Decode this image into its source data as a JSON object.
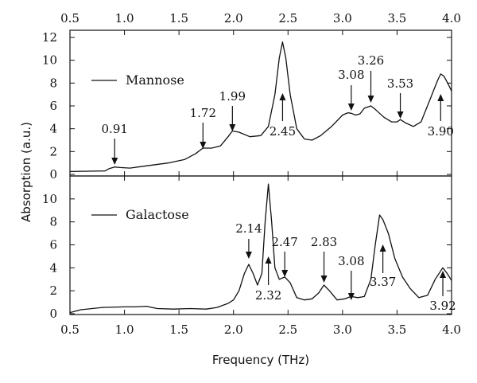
{
  "chart_data": {
    "type": "line",
    "xlabel": "Frequency (THz)",
    "ylabel": "Absorption (a.u.)",
    "xlim": [
      0.5,
      4.0
    ],
    "x_ticks": [
      "0.5",
      "1.0",
      "1.5",
      "2.0",
      "2.5",
      "3.0",
      "3.5",
      "4.0"
    ],
    "top_x_ticks": [
      "0.5",
      "1.0",
      "1.5",
      "2.0",
      "2.5",
      "3.0",
      "3.5",
      "4.0"
    ],
    "grid": false,
    "panels": [
      {
        "name": "Mannose",
        "ylim": [
          0,
          12
        ],
        "y_ticks": [
          "0",
          "2",
          "4",
          "6",
          "8",
          "10",
          "12"
        ],
        "legend_position": "middle-left",
        "series": [
          {
            "name": "Mannose",
            "x": [
              0.5,
              0.82,
              0.86,
              0.91,
              0.96,
              1.05,
              1.2,
              1.4,
              1.55,
              1.65,
              1.72,
              1.8,
              1.88,
              1.95,
              1.99,
              2.05,
              2.15,
              2.25,
              2.32,
              2.38,
              2.42,
              2.45,
              2.48,
              2.52,
              2.58,
              2.65,
              2.72,
              2.8,
              2.9,
              3.0,
              3.05,
              3.08,
              3.12,
              3.16,
              3.2,
              3.26,
              3.3,
              3.38,
              3.45,
              3.5,
              3.53,
              3.58,
              3.65,
              3.72,
              3.8,
              3.87,
              3.9,
              3.93,
              3.97,
              4.0
            ],
            "values": [
              0.25,
              0.3,
              0.5,
              0.65,
              0.6,
              0.55,
              0.75,
              1.0,
              1.3,
              1.8,
              2.3,
              2.3,
              2.5,
              3.3,
              3.8,
              3.7,
              3.3,
              3.4,
              4.2,
              7.0,
              10.2,
              11.6,
              10.2,
              7.0,
              4.0,
              3.1,
              3.0,
              3.4,
              4.2,
              5.2,
              5.4,
              5.35,
              5.2,
              5.3,
              5.8,
              6.0,
              5.7,
              5.0,
              4.6,
              4.6,
              4.8,
              4.5,
              4.2,
              4.6,
              6.5,
              8.2,
              8.8,
              8.6,
              7.9,
              7.3
            ]
          }
        ],
        "annotations": [
          {
            "label": "0.91",
            "x": 0.91,
            "direction": "down"
          },
          {
            "label": "1.72",
            "x": 1.72,
            "direction": "down"
          },
          {
            "label": "1.99",
            "x": 1.99,
            "direction": "down"
          },
          {
            "label": "2.45",
            "x": 2.45,
            "direction": "up"
          },
          {
            "label": "3.08",
            "x": 3.08,
            "direction": "down"
          },
          {
            "label": "3.26",
            "x": 3.26,
            "direction": "down"
          },
          {
            "label": "3.53",
            "x": 3.53,
            "direction": "down"
          },
          {
            "label": "3.90",
            "x": 3.9,
            "direction": "up"
          }
        ]
      },
      {
        "name": "Galactose",
        "ylim": [
          0,
          12
        ],
        "y_ticks": [
          "0",
          "2",
          "4",
          "6",
          "8",
          "10"
        ],
        "legend_position": "top-left",
        "series": [
          {
            "name": "Galactose",
            "x": [
              0.5,
              0.6,
              0.8,
              1.0,
              1.1,
              1.2,
              1.3,
              1.45,
              1.6,
              1.75,
              1.85,
              1.95,
              2.0,
              2.05,
              2.1,
              2.14,
              2.18,
              2.22,
              2.26,
              2.29,
              2.32,
              2.35,
              2.38,
              2.42,
              2.47,
              2.52,
              2.58,
              2.65,
              2.72,
              2.78,
              2.83,
              2.88,
              2.95,
              3.02,
              3.08,
              3.14,
              3.2,
              3.26,
              3.3,
              3.34,
              3.37,
              3.42,
              3.48,
              3.55,
              3.62,
              3.7,
              3.78,
              3.85,
              3.92,
              3.96,
              4.0
            ],
            "values": [
              0.1,
              0.35,
              0.55,
              0.6,
              0.6,
              0.65,
              0.45,
              0.4,
              0.45,
              0.4,
              0.55,
              0.9,
              1.2,
              2.0,
              3.5,
              4.3,
              3.5,
              2.5,
              3.5,
              8.0,
              11.3,
              8.0,
              4.0,
              3.0,
              3.2,
              2.7,
              1.4,
              1.2,
              1.3,
              1.8,
              2.5,
              2.0,
              1.2,
              1.3,
              1.5,
              1.4,
              1.5,
              3.0,
              6.0,
              8.6,
              8.2,
              7.0,
              4.8,
              3.2,
              2.2,
              1.4,
              1.6,
              3.0,
              4.0,
              3.5,
              2.9
            ]
          }
        ],
        "annotations": [
          {
            "label": "2.14",
            "x": 2.14,
            "direction": "down"
          },
          {
            "label": "2.32",
            "x": 2.32,
            "direction": "up"
          },
          {
            "label": "2.47",
            "x": 2.47,
            "direction": "down"
          },
          {
            "label": "2.83",
            "x": 2.83,
            "direction": "down"
          },
          {
            "label": "3.08",
            "x": 3.08,
            "direction": "down"
          },
          {
            "label": "3.37",
            "x": 3.37,
            "direction": "up"
          },
          {
            "label": "3.92",
            "x": 3.92,
            "direction": "up"
          }
        ]
      }
    ]
  }
}
